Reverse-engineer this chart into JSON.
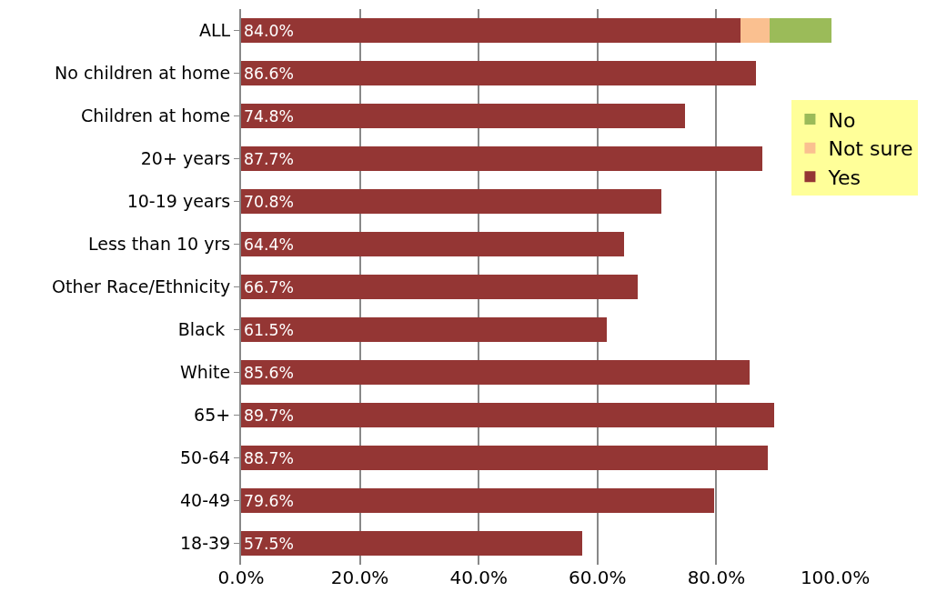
{
  "chart_data": {
    "type": "bar",
    "orientation": "horizontal",
    "stacked": true,
    "categories": [
      "ALL",
      "No children at home",
      "Children at home",
      "20+ years",
      "10-19 years",
      "Less than 10 yrs",
      "Other Race/Ethnicity",
      "Black ",
      "White",
      "65+",
      "50-64",
      "40-49",
      "18-39"
    ],
    "series": [
      {
        "name": "Yes",
        "color": "#943634",
        "values": [
          84.0,
          86.6,
          74.8,
          87.7,
          70.8,
          64.4,
          66.7,
          61.5,
          85.6,
          89.7,
          88.7,
          79.6,
          57.5
        ],
        "value_labels": [
          "84.0%",
          "86.6%",
          "74.8%",
          "87.7%",
          "70.8%",
          "64.4%",
          "66.7%",
          "61.5%",
          "85.6%",
          "89.7%",
          "88.7%",
          "79.6%",
          "57.5%"
        ]
      },
      {
        "name": "Not sure",
        "color": "#fac090",
        "values": [
          4.9,
          null,
          null,
          null,
          null,
          null,
          null,
          null,
          null,
          null,
          null,
          null,
          null
        ]
      },
      {
        "name": "No",
        "color": "#9bbb59",
        "values": [
          10.5,
          null,
          null,
          null,
          null,
          null,
          null,
          null,
          null,
          null,
          null,
          null,
          null
        ]
      }
    ],
    "xlim": [
      0,
      100
    ],
    "xticks": [
      {
        "value": 0,
        "label": "0.0%"
      },
      {
        "value": 20,
        "label": "20.0%"
      },
      {
        "value": 40,
        "label": "40.0%"
      },
      {
        "value": 60,
        "label": "60.0%"
      },
      {
        "value": 80,
        "label": "80.0%"
      },
      {
        "value": 100,
        "label": "100.0%"
      }
    ],
    "grid": "x",
    "legend": "right"
  }
}
